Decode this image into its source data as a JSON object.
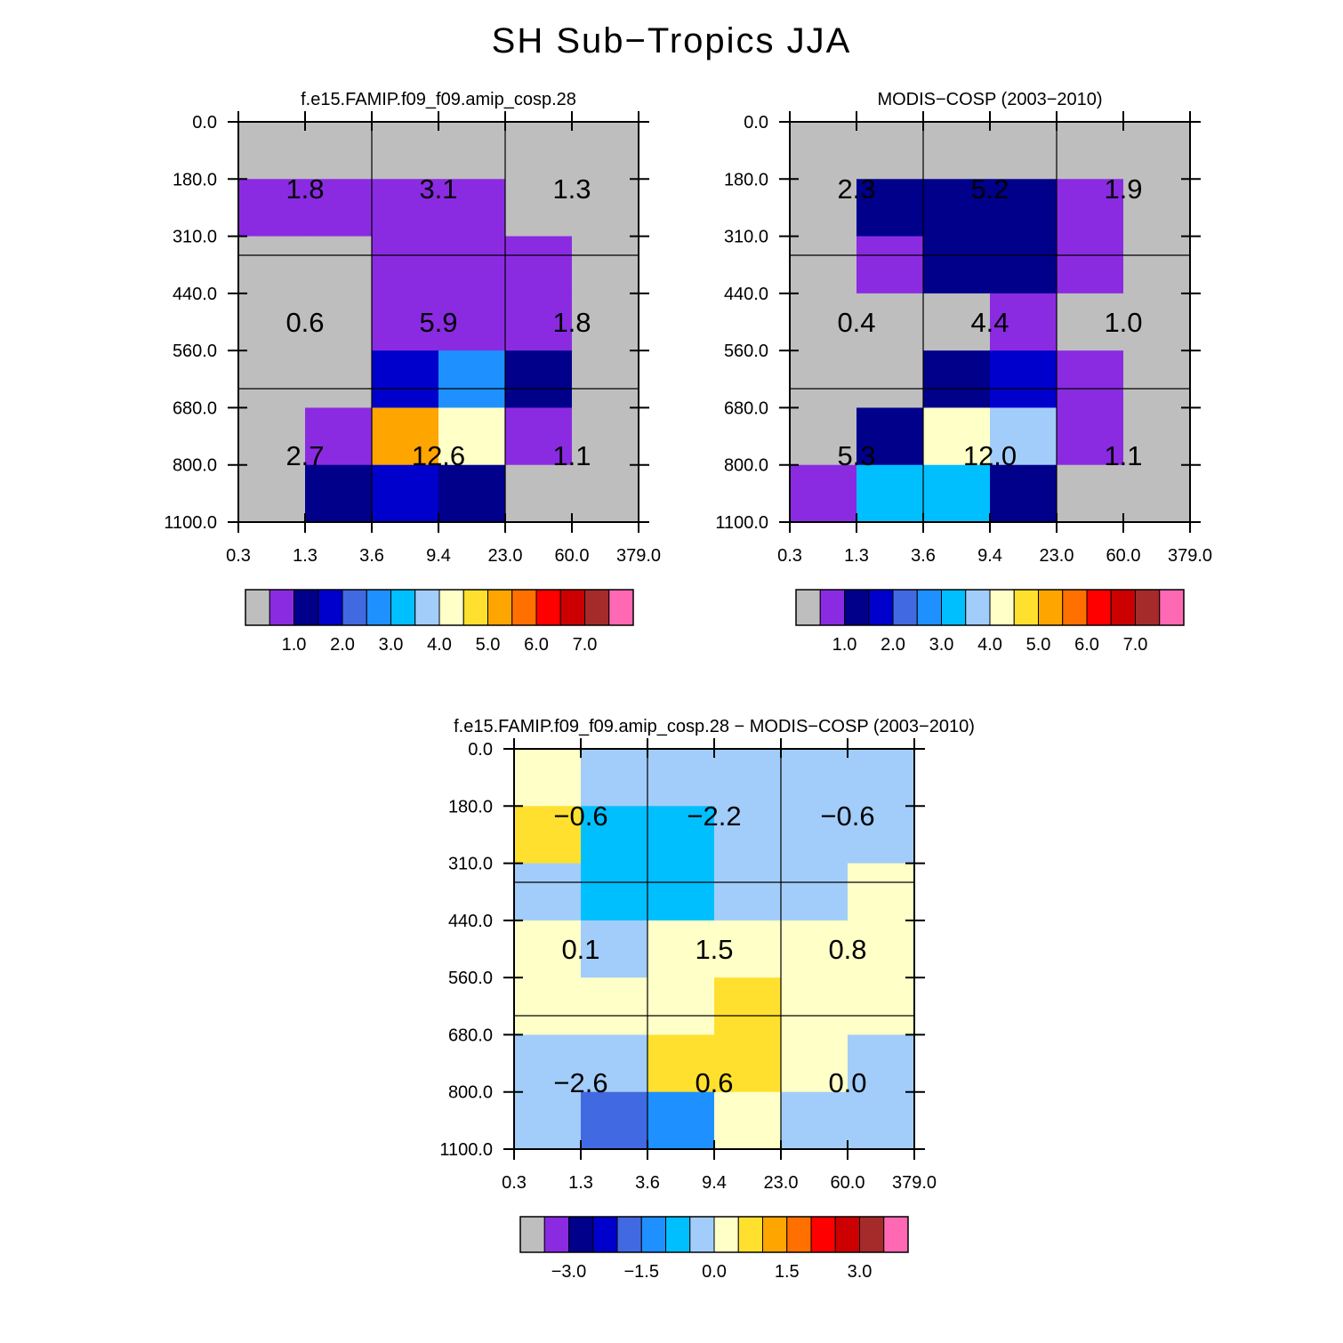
{
  "title": "SH Sub−Tropics JJA",
  "palette": [
    "#bebebe",
    "#8a2be2",
    "#00008b",
    "#0000cd",
    "#4169e1",
    "#1e90ff",
    "#00bfff",
    "#a2cdfa",
    "#ffffc8",
    "#ffe02e",
    "#ffa500",
    "#ff7000",
    "#ff0000",
    "#cc0000",
    "#a52a2a",
    "#ff69b4"
  ],
  "chart_data": [
    {
      "type": "heatmap",
      "title": "f.e15.FAMIP.f09_f09.amip_cosp.28",
      "x_tick_labels": [
        "0.3",
        "1.3",
        "3.6",
        "9.4",
        "23.0",
        "60.0",
        "379.0"
      ],
      "y_tick_labels": [
        "0.0",
        "180.0",
        "310.0",
        "440.0",
        "560.0",
        "680.0",
        "800.0",
        "1100.0"
      ],
      "cell_colors": [
        [
          0,
          0,
          0,
          0,
          0,
          0
        ],
        [
          1,
          1,
          1,
          1,
          0,
          0
        ],
        [
          0,
          0,
          1,
          1,
          1,
          0
        ],
        [
          0,
          0,
          1,
          1,
          1,
          0
        ],
        [
          0,
          0,
          3,
          5,
          2,
          0
        ],
        [
          0,
          1,
          10,
          8,
          1,
          0
        ],
        [
          0,
          2,
          3,
          2,
          0,
          0
        ]
      ],
      "group_values": [
        [
          "1.8",
          "3.1",
          "1.3"
        ],
        [
          "0.6",
          "5.9",
          "1.8"
        ],
        [
          "2.7",
          "12.6",
          "1.1"
        ]
      ],
      "colorbar": {
        "labels": [
          "1.0",
          "2.0",
          "3.0",
          "4.0",
          "5.0",
          "6.0",
          "7.0"
        ]
      }
    },
    {
      "type": "heatmap",
      "title": "MODIS−COSP (2003−2010)",
      "x_tick_labels": [
        "0.3",
        "1.3",
        "3.6",
        "9.4",
        "23.0",
        "60.0",
        "379.0"
      ],
      "y_tick_labels": [
        "0.0",
        "180.0",
        "310.0",
        "440.0",
        "560.0",
        "680.0",
        "800.0",
        "1100.0"
      ],
      "cell_colors": [
        [
          0,
          0,
          0,
          0,
          0,
          0
        ],
        [
          0,
          2,
          2,
          2,
          1,
          0
        ],
        [
          0,
          1,
          2,
          2,
          1,
          0
        ],
        [
          0,
          0,
          0,
          1,
          0,
          0
        ],
        [
          0,
          0,
          2,
          3,
          1,
          0
        ],
        [
          0,
          2,
          8,
          7,
          1,
          0
        ],
        [
          1,
          6,
          6,
          2,
          0,
          0
        ]
      ],
      "group_values": [
        [
          "2.3",
          "5.2",
          "1.9"
        ],
        [
          "0.4",
          "4.4",
          "1.0"
        ],
        [
          "5.3",
          "12.0",
          "1.1"
        ]
      ],
      "colorbar": {
        "labels": [
          "1.0",
          "2.0",
          "3.0",
          "4.0",
          "5.0",
          "6.0",
          "7.0"
        ]
      }
    },
    {
      "type": "heatmap",
      "title": "f.e15.FAMIP.f09_f09.amip_cosp.28 − MODIS−COSP (2003−2010)",
      "x_tick_labels": [
        "0.3",
        "1.3",
        "3.6",
        "9.4",
        "23.0",
        "60.0",
        "379.0"
      ],
      "y_tick_labels": [
        "0.0",
        "180.0",
        "310.0",
        "440.0",
        "560.0",
        "680.0",
        "800.0",
        "1100.0"
      ],
      "cell_colors": [
        [
          8,
          7,
          7,
          7,
          7,
          7
        ],
        [
          9,
          6,
          6,
          7,
          7,
          7
        ],
        [
          7,
          6,
          6,
          7,
          7,
          8
        ],
        [
          8,
          7,
          8,
          8,
          8,
          8
        ],
        [
          8,
          8,
          8,
          9,
          8,
          8
        ],
        [
          7,
          7,
          9,
          9,
          8,
          7
        ],
        [
          7,
          4,
          5,
          8,
          7,
          7
        ]
      ],
      "group_values": [
        [
          "−0.6",
          "−2.2",
          "−0.6"
        ],
        [
          "0.1",
          "1.5",
          "0.8"
        ],
        [
          "−2.6",
          "0.6",
          "0.0"
        ]
      ],
      "colorbar": {
        "labels": [
          "−3.0",
          "−1.5",
          "0.0",
          "1.5",
          "3.0"
        ]
      }
    }
  ]
}
